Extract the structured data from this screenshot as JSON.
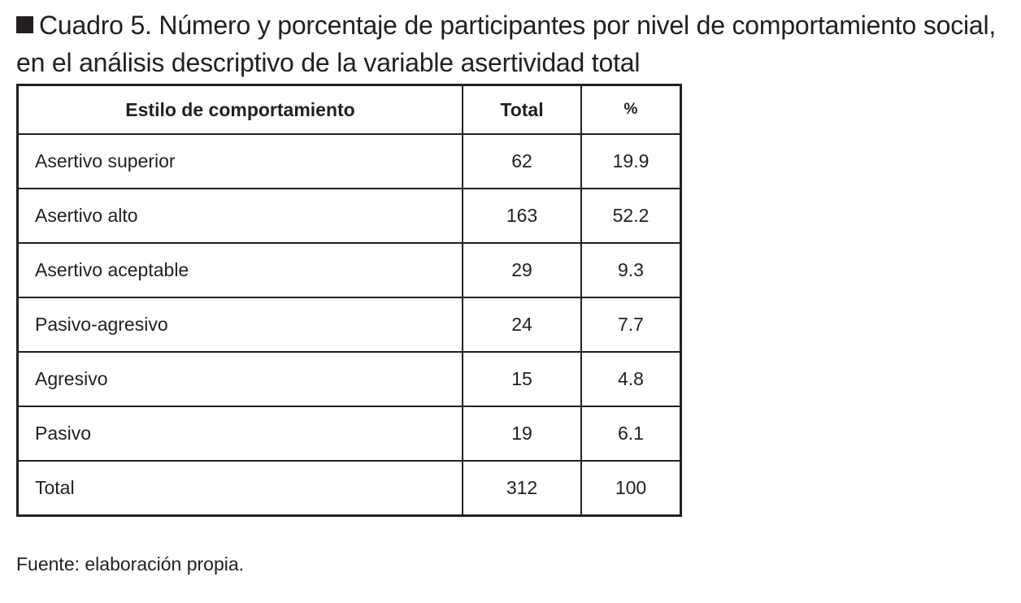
{
  "caption": {
    "text": "Cuadro 5. Número y porcentaje de participantes por nivel de comportamiento social, en el análisis descriptivo de la variable asertividad total"
  },
  "table": {
    "headers": [
      "Estilo de comportamiento",
      "Total",
      "%"
    ],
    "rows": [
      [
        "Asertivo superior",
        "62",
        "19.9"
      ],
      [
        "Asertivo alto",
        "163",
        "52.2"
      ],
      [
        "Asertivo aceptable",
        "29",
        "9.3"
      ],
      [
        "Pasivo-agresivo",
        "24",
        "7.7"
      ],
      [
        "Agresivo",
        "15",
        "4.8"
      ],
      [
        "Pasivo",
        "19",
        "6.1"
      ],
      [
        "Total",
        "312",
        "100"
      ]
    ]
  },
  "source": {
    "text": "Fuente: elaboración propia."
  },
  "colors": {
    "text": "#231f20",
    "background": "#ffffff"
  }
}
